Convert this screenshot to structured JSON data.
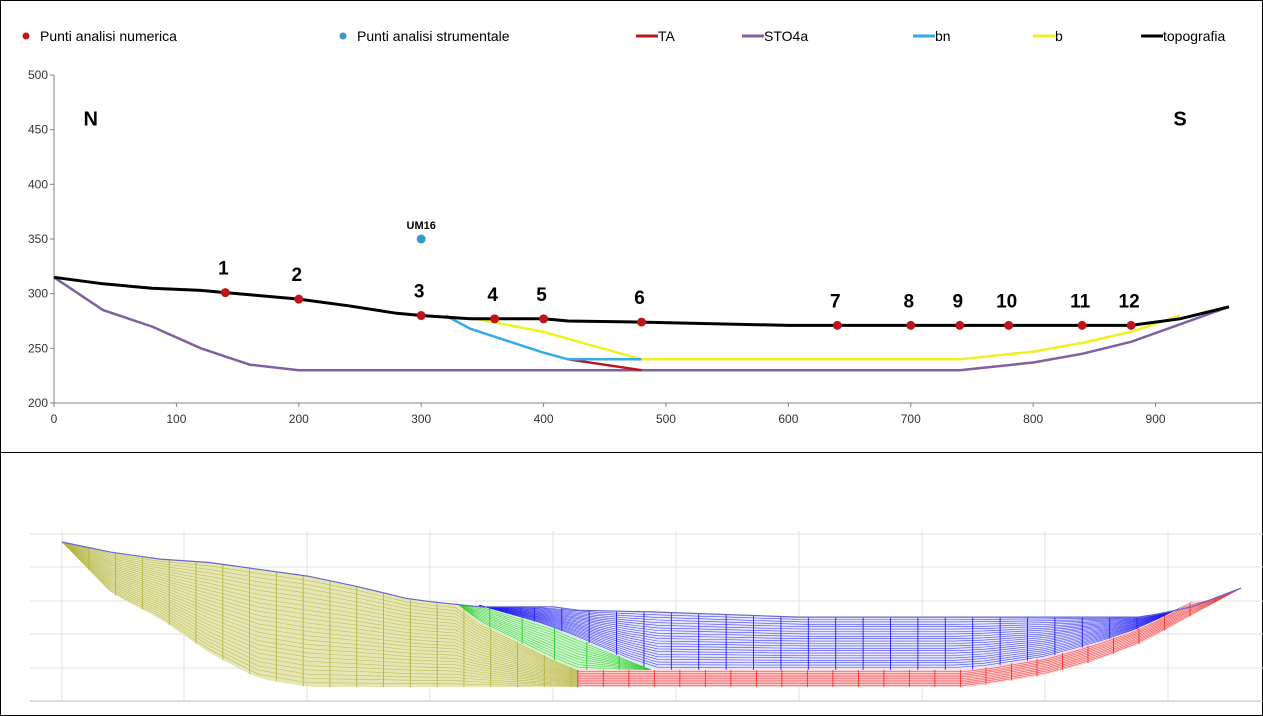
{
  "chart_data": {
    "type": "line",
    "xlim": [
      0,
      960
    ],
    "ylim": [
      200,
      500
    ],
    "x_ticks": [
      "0",
      "100",
      "200",
      "300",
      "400",
      "500",
      "600",
      "700",
      "800",
      "900"
    ],
    "y_ticks": [
      "200",
      "250",
      "300",
      "350",
      "400",
      "450",
      "500"
    ],
    "grid": false,
    "legend_position": "top",
    "legend": [
      {
        "label": "Punti analisi numerica",
        "kind": "marker",
        "color": "#c0141c"
      },
      {
        "label": "Punti analisi strumentale",
        "kind": "marker",
        "color": "#3399cc"
      },
      {
        "label": "TA",
        "kind": "line",
        "color": "#c0141c"
      },
      {
        "label": "STO4a",
        "kind": "line",
        "color": "#8060a0"
      },
      {
        "label": "bn",
        "kind": "line",
        "color": "#33aaee"
      },
      {
        "label": "b",
        "kind": "line",
        "color": "#f0f020"
      },
      {
        "label": "topografia",
        "kind": "line",
        "color": "#000000"
      }
    ],
    "direction_labels": [
      {
        "text": "N",
        "x": 30,
        "y": 460
      },
      {
        "text": "S",
        "x": 920,
        "y": 460
      }
    ],
    "series": [
      {
        "name": "STO4a",
        "color": "#8060a0",
        "points": [
          [
            0,
            315
          ],
          [
            40,
            285
          ],
          [
            80,
            270
          ],
          [
            120,
            250
          ],
          [
            160,
            235
          ],
          [
            200,
            230
          ],
          [
            740,
            230
          ],
          [
            800,
            237
          ],
          [
            840,
            245
          ],
          [
            880,
            256
          ],
          [
            920,
            272
          ],
          [
            960,
            288
          ]
        ]
      },
      {
        "name": "b",
        "color": "#f0f020",
        "points": [
          [
            340,
            278
          ],
          [
            400,
            265
          ],
          [
            480,
            240
          ],
          [
            740,
            240
          ],
          [
            800,
            247
          ],
          [
            840,
            255
          ],
          [
            880,
            265
          ],
          [
            920,
            280
          ]
        ]
      },
      {
        "name": "TA",
        "color": "#c0141c",
        "points": [
          [
            420,
            240
          ],
          [
            480,
            230
          ]
        ]
      },
      {
        "name": "bn",
        "color": "#33aaee",
        "points": [
          [
            320,
            280
          ],
          [
            340,
            268
          ],
          [
            400,
            246
          ],
          [
            420,
            240
          ],
          [
            480,
            240
          ]
        ]
      },
      {
        "name": "topografia",
        "color": "#000000",
        "points": [
          [
            0,
            315
          ],
          [
            40,
            309
          ],
          [
            80,
            305
          ],
          [
            120,
            303
          ],
          [
            140,
            301
          ],
          [
            160,
            299
          ],
          [
            200,
            295
          ],
          [
            240,
            289
          ],
          [
            280,
            282
          ],
          [
            300,
            280
          ],
          [
            340,
            277
          ],
          [
            360,
            277
          ],
          [
            400,
            277
          ],
          [
            420,
            275
          ],
          [
            480,
            274
          ],
          [
            600,
            271
          ],
          [
            640,
            271
          ],
          [
            740,
            271
          ],
          [
            880,
            271
          ],
          [
            920,
            277
          ],
          [
            960,
            288
          ]
        ]
      }
    ],
    "numerical_points": [
      {
        "label": "1",
        "x": 140,
        "y": 301
      },
      {
        "label": "2",
        "x": 200,
        "y": 295
      },
      {
        "label": "3",
        "x": 300,
        "y": 280
      },
      {
        "label": "4",
        "x": 360,
        "y": 277
      },
      {
        "label": "5",
        "x": 400,
        "y": 277
      },
      {
        "label": "6",
        "x": 480,
        "y": 274
      },
      {
        "label": "7",
        "x": 640,
        "y": 271
      },
      {
        "label": "8",
        "x": 700,
        "y": 271
      },
      {
        "label": "9",
        "x": 740,
        "y": 271
      },
      {
        "label": "10",
        "x": 780,
        "y": 271
      },
      {
        "label": "11",
        "x": 840,
        "y": 271
      },
      {
        "label": "12",
        "x": 880,
        "y": 271
      }
    ],
    "instrumental_points": [
      {
        "label": "UM16",
        "x": 300,
        "y": 350
      }
    ]
  },
  "mesh_panel": {
    "zones": [
      {
        "name": "STO4a",
        "fill": "#e6e6b4",
        "stroke": "#b4b446"
      },
      {
        "name": "bn",
        "fill": "#cff5cf",
        "stroke": "#2acc2a"
      },
      {
        "name": "b",
        "fill": "#e6e6ff",
        "stroke": "#1e1ef0"
      },
      {
        "name": "TA",
        "fill": "#ffd2d2",
        "stroke": "#f03232"
      }
    ],
    "topography_color": "#6666cc"
  }
}
